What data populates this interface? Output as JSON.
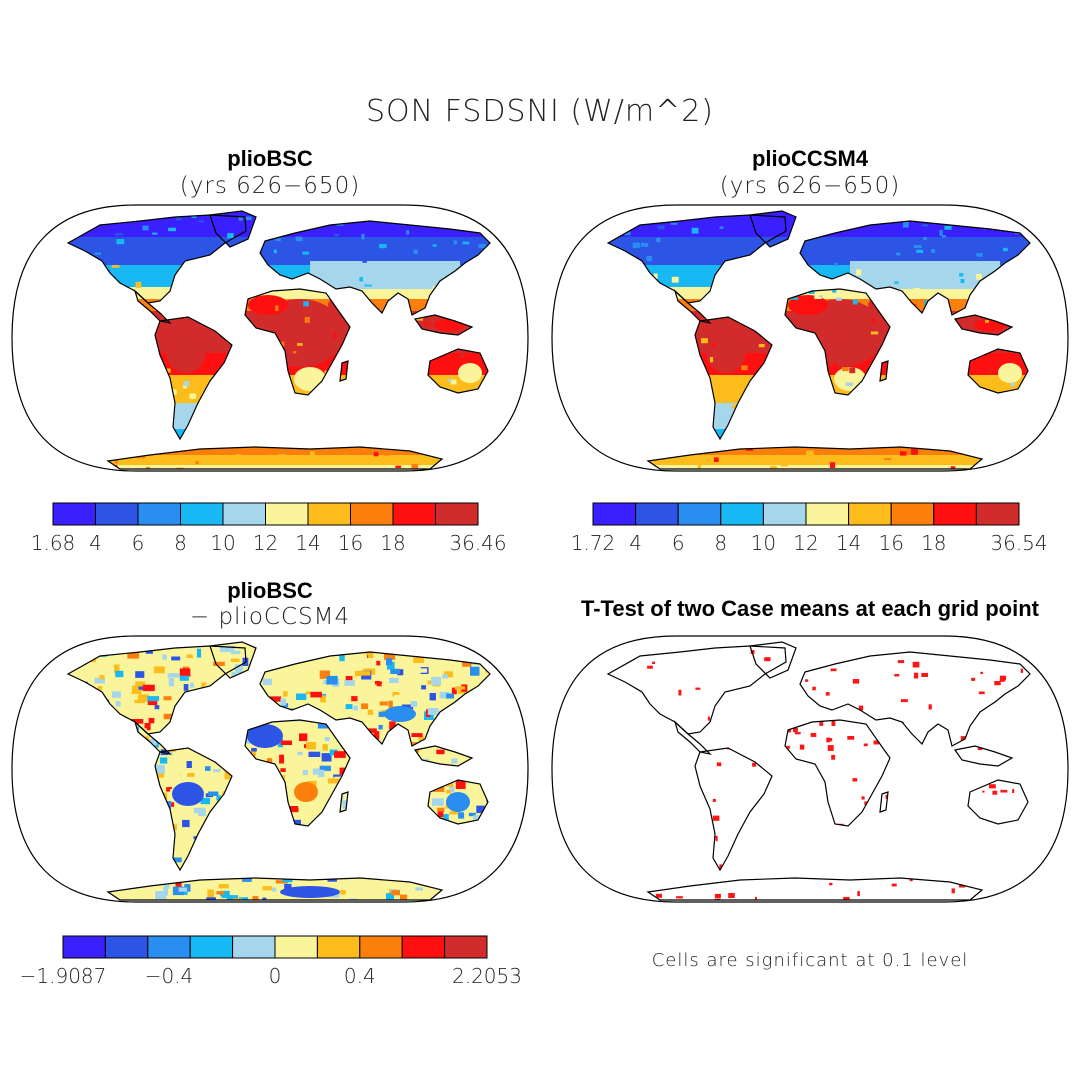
{
  "title": "SON FSDSNI (W/m^2)",
  "panels": [
    {
      "id": "p1",
      "title": "plioBSC",
      "subtitle": "(yrs 626−650)",
      "kind": "field"
    },
    {
      "id": "p2",
      "title": "plioCCSM4",
      "subtitle": "(yrs 626−650)",
      "kind": "field"
    },
    {
      "id": "p3",
      "title": "plioBSC",
      "subtitle": "− plioCCSM4",
      "kind": "diff"
    },
    {
      "id": "p4",
      "title": "T-Test of two Case means at each grid point",
      "subtitle": "",
      "kind": "ttest"
    }
  ],
  "colorbars": [
    {
      "id": "cb1",
      "labels": [
        "1.68",
        "4",
        "6",
        "8",
        "10",
        "12",
        "14",
        "16",
        "18",
        "36.46"
      ]
    },
    {
      "id": "cb2",
      "labels": [
        "1.72",
        "4",
        "6",
        "8",
        "10",
        "12",
        "14",
        "16",
        "18",
        "36.54"
      ]
    },
    {
      "id": "cb3",
      "labels": [
        "−1.9087",
        "−0.4",
        "0",
        "0.4",
        "2.2053"
      ]
    }
  ],
  "palette": [
    "#3a1fff",
    "#2c55e6",
    "#2a8ef0",
    "#18b8f5",
    "#a6d6ec",
    "#faf59a",
    "#fcbc1c",
    "#fa7f0c",
    "#ff1010",
    "#d22b2b"
  ],
  "ttest_color": "#ff1515",
  "note": "Cells are significant at 0.1 level"
}
